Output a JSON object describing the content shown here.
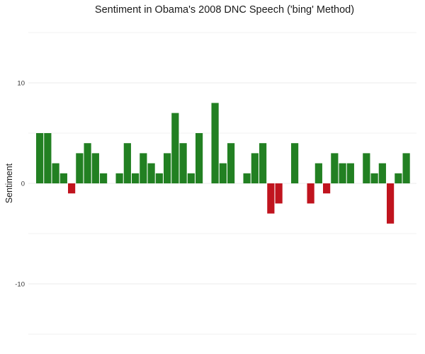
{
  "chart_data": {
    "type": "bar",
    "title": "Sentiment in Obama's 2008 DNC Speech ('bing' Method)",
    "xlabel": "",
    "ylabel": "Sentiment",
    "ylim": [
      -15,
      15
    ],
    "yticks": [
      -10,
      0,
      10
    ],
    "grid": true,
    "legend": "none",
    "colors": {
      "positive": "#228022",
      "negative": "#c0141e",
      "gridline": "#ebebeb"
    },
    "values": [
      5,
      5,
      2,
      1,
      -1,
      3,
      4,
      3,
      1,
      0,
      1,
      4,
      1,
      3,
      2,
      1,
      3,
      7,
      4,
      1,
      5,
      0,
      8,
      2,
      4,
      0,
      1,
      3,
      4,
      -3,
      -2,
      0,
      4,
      0,
      -2,
      2,
      -1,
      3,
      2,
      2,
      0,
      3,
      1,
      2,
      -4,
      1,
      3
    ]
  }
}
